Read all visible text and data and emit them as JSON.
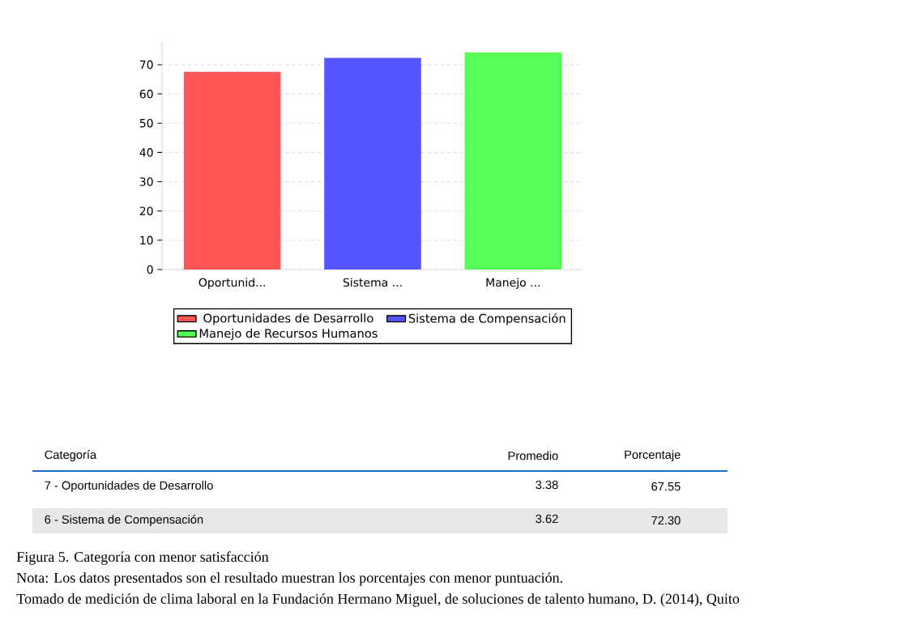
{
  "chart_data": {
    "type": "bar",
    "categories": [
      "Oportunid...",
      "Sistema ...",
      "Manejo ..."
    ],
    "series": [
      {
        "name": "Oportunidades de Desarrollo",
        "color": "#ff5555",
        "values": [
          67.55,
          null,
          null
        ]
      },
      {
        "name": "Sistema de Compensación",
        "color": "#5555ff",
        "values": [
          null,
          72.3,
          null
        ]
      },
      {
        "name": "Manejo de Recursos Humanos",
        "color": "#55ff55",
        "values": [
          null,
          null,
          74.2
        ]
      }
    ],
    "ylim": [
      0,
      78
    ],
    "yticks": [
      0,
      10,
      20,
      30,
      40,
      50,
      60,
      70
    ],
    "grid": "y",
    "legend": "bottom",
    "annotations": [
      "Categoría",
      "Promedio",
      "Porcentaje",
      "7 - Oportunidades de Desarrollo",
      "3.38",
      "6 - Sistema de Compensación",
      "3.62",
      "67.55",
      "72.30",
      "Figura 5. Categoría con menor satisfacción",
      "Nota: Los datos presentados son el resultado muestran los porcentajes con menor puntuación.",
      "Tomado de medición de clima laboral en la Fundación Hermano Miguel, de soluciones de talento humano, D. (2014), Quito"
    ]
  }
}
